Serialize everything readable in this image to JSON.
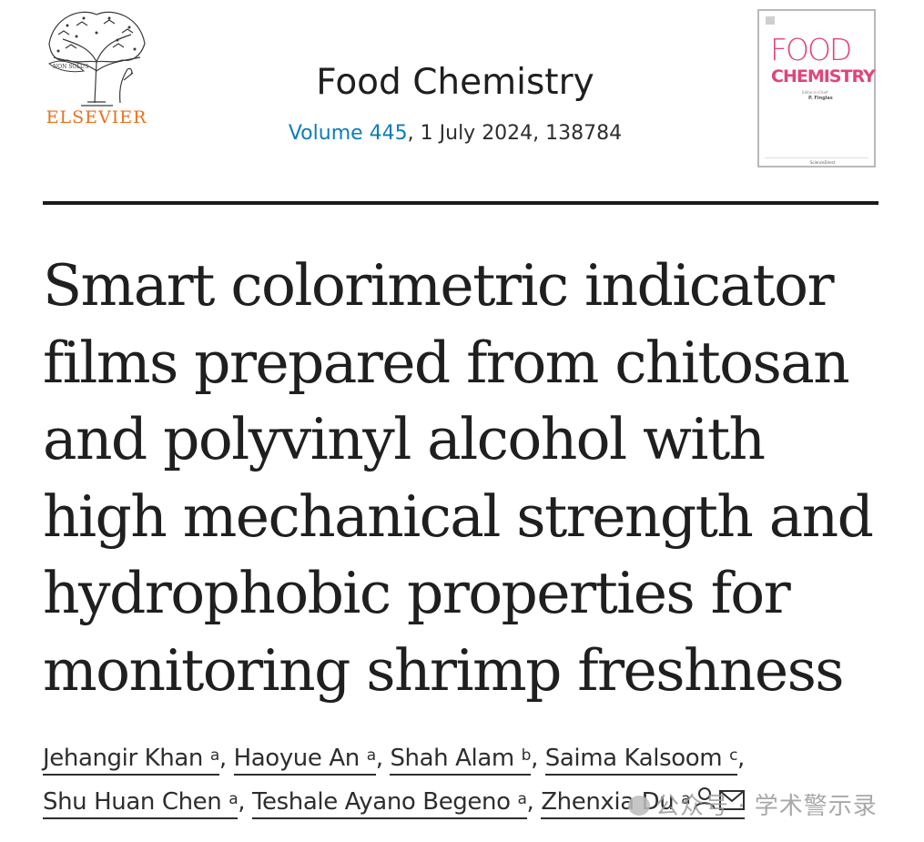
{
  "header": {
    "publisher": "ELSEVIER",
    "publisher_logo_text": "NON SOLUS",
    "journal": "Food Chemistry",
    "volume_link": "Volume 445",
    "citation_rest": ", 1 July 2024, 138784"
  },
  "cover": {
    "line1": "FOOD",
    "line2": "CHEMISTRY",
    "editor_label": "Editor-in-Chief",
    "editor_name": "P. Finglas",
    "footer": "ScienceDirect"
  },
  "article": {
    "title_lines": [
      "Smart colorimetric indicator",
      "films prepared from chitosan",
      "and polyvinyl alcohol with",
      "high mechanical strength and",
      "hydrophobic properties for",
      "monitoring shrimp freshness"
    ]
  },
  "authors": [
    {
      "name": "Jehangir Khan",
      "aff": "a",
      "sep": ", "
    },
    {
      "name": "Haoyue An",
      "aff": "a",
      "sep": ", "
    },
    {
      "name": "Shah Alam",
      "aff": "b",
      "sep": ", "
    },
    {
      "name": "Saima Kalsoom",
      "aff": "c",
      "sep": ","
    },
    {
      "name": "Shu Huan Chen",
      "aff": "a",
      "sep": ", "
    },
    {
      "name": "Teshale Ayano Begeno",
      "aff": "a",
      "sep": ", "
    },
    {
      "name": "Zhenxia Du",
      "aff": "a",
      "sep": ""
    }
  ],
  "icons": {
    "corresponding": "person-icon",
    "email": "envelope-icon"
  },
  "watermark": "公众号 · 学术警示录",
  "colors": {
    "publisher_orange": "#e9711c",
    "link_blue": "#0c7dbb",
    "cover_pink": "#e0457b",
    "text": "#1f1f1f"
  }
}
